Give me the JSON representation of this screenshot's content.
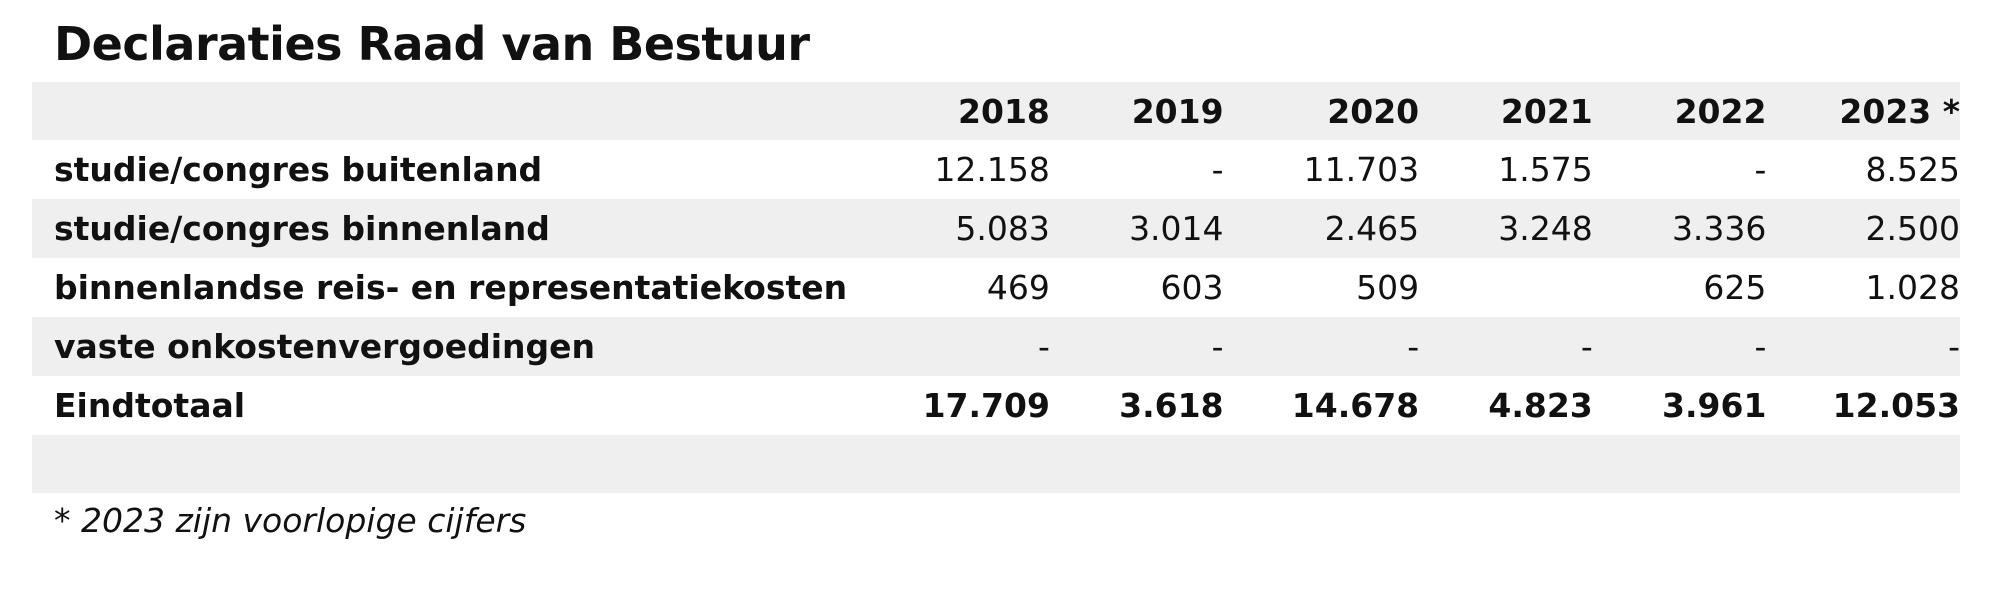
{
  "title": "Declaraties Raad van Bestuur",
  "table": {
    "years": [
      "2018",
      "2019",
      "2020",
      "2021",
      "2022",
      "2023 *"
    ],
    "rows": [
      {
        "label": "studie/congres buitenland",
        "values": [
          "12.158",
          "-",
          "11.703",
          "1.575",
          "-",
          "8.525"
        ]
      },
      {
        "label": "studie/congres binnenland",
        "values": [
          "5.083",
          "3.014",
          "2.465",
          "3.248",
          "3.336",
          "2.500"
        ]
      },
      {
        "label": "binnenlandse reis- en representatiekosten",
        "values": [
          "469",
          "603",
          "509",
          "",
          "625",
          "1.028"
        ]
      },
      {
        "label": "vaste onkostenvergoedingen",
        "values": [
          "-",
          "-",
          "-",
          "-",
          "-",
          "-"
        ]
      }
    ],
    "total": {
      "label": "Eindtotaal",
      "values": [
        "17.709",
        "3.618",
        "14.678",
        "4.823",
        "3.961",
        "12.053"
      ]
    }
  },
  "footnote": "* 2023 zijn voorlopige cijfers"
}
